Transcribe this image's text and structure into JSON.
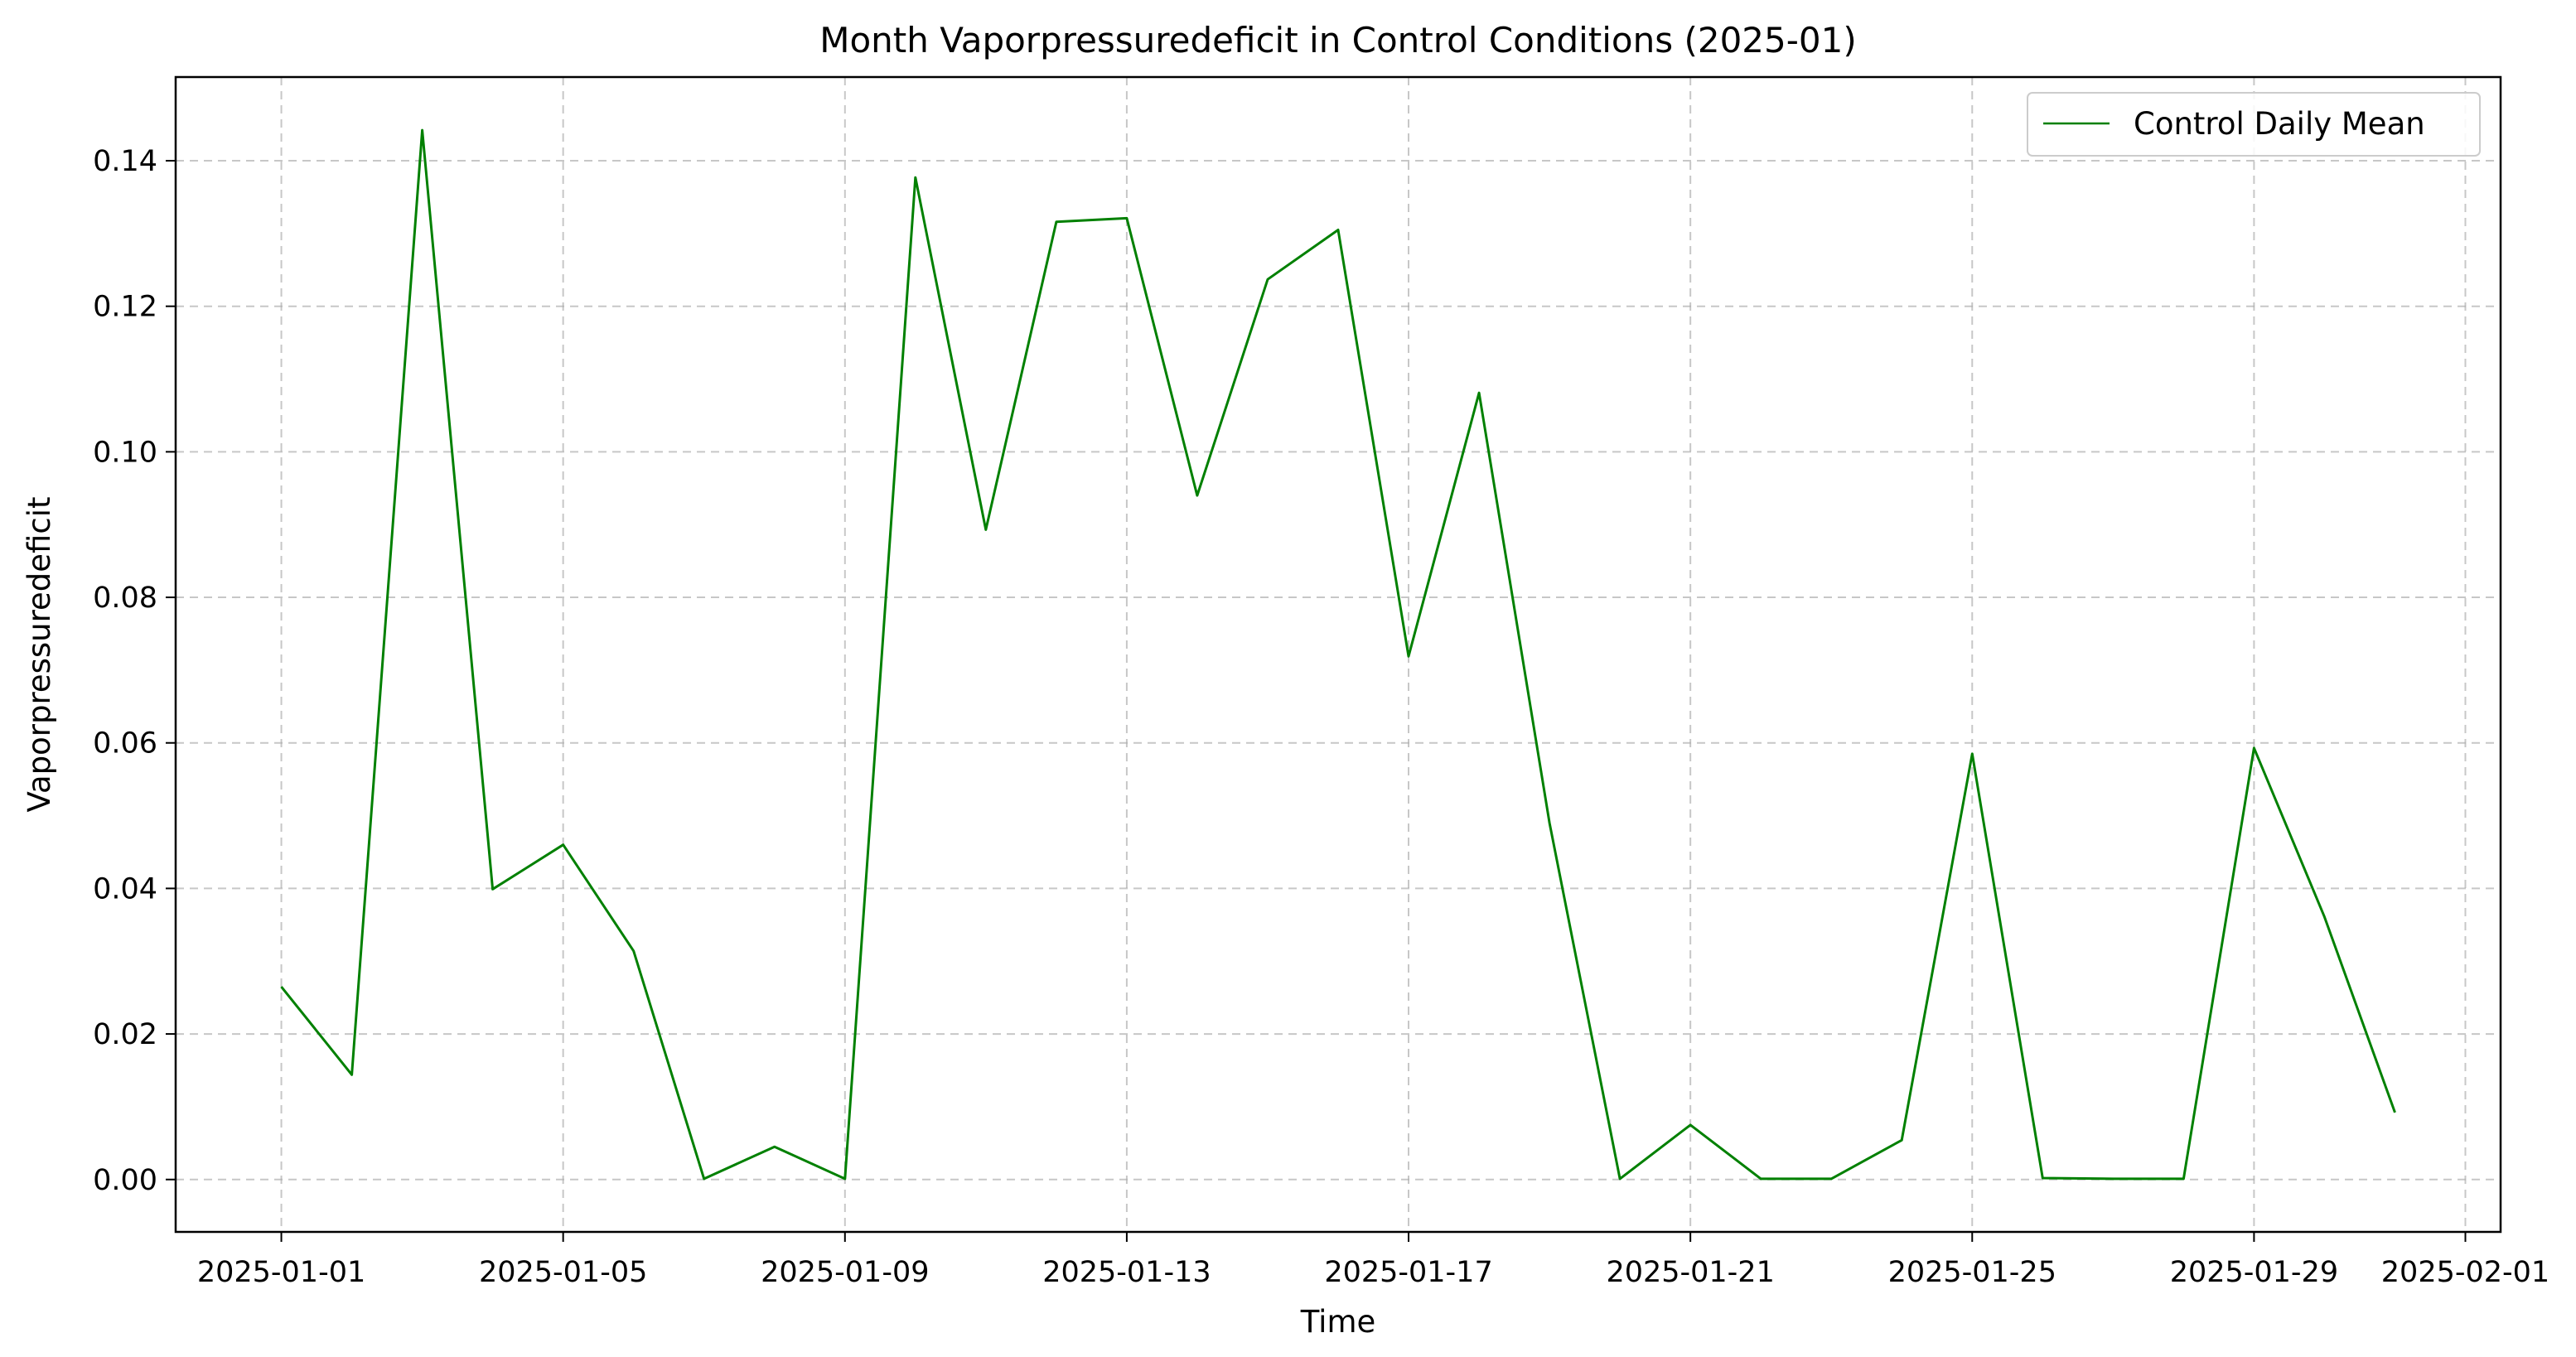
{
  "chart_data": {
    "type": "line",
    "title": "Month Vaporpressuredeficit in Control Conditions (2025-01)",
    "xlabel": "Time",
    "ylabel": "Vaporpressuredeficit",
    "xlim": [
      "2024-12-30T12:00",
      "2025-02-01T12:00"
    ],
    "ylim": [
      -0.0072,
      0.1515
    ],
    "grid": true,
    "legend_position": "top-right",
    "xticks": [
      "2025-01-01",
      "2025-01-05",
      "2025-01-09",
      "2025-01-13",
      "2025-01-17",
      "2025-01-21",
      "2025-01-25",
      "2025-01-29",
      "2025-02-01"
    ],
    "yticks": [
      0.0,
      0.02,
      0.04,
      0.06,
      0.08,
      0.1,
      0.12,
      0.14
    ],
    "ytick_labels": [
      "0.00",
      "0.02",
      "0.04",
      "0.06",
      "0.08",
      "0.10",
      "0.12",
      "0.14"
    ],
    "series": [
      {
        "name": "Control Daily Mean",
        "color": "#008000",
        "x": [
          "2025-01-01",
          "2025-01-02",
          "2025-01-03",
          "2025-01-04",
          "2025-01-05",
          "2025-01-06",
          "2025-01-07",
          "2025-01-08",
          "2025-01-09",
          "2025-01-10",
          "2025-01-11",
          "2025-01-12",
          "2025-01-13",
          "2025-01-14",
          "2025-01-15",
          "2025-01-16",
          "2025-01-17",
          "2025-01-18",
          "2025-01-19",
          "2025-01-20",
          "2025-01-21",
          "2025-01-22",
          "2025-01-23",
          "2025-01-24",
          "2025-01-25",
          "2025-01-26",
          "2025-01-27",
          "2025-01-28",
          "2025-01-29",
          "2025-01-30",
          "2025-01-31"
        ],
        "y": [
          0.0265,
          0.0144,
          0.1442,
          0.0399,
          0.046,
          0.0314,
          0.0001,
          0.0045,
          0.0001,
          0.1377,
          0.0893,
          0.1316,
          0.1321,
          0.094,
          0.1237,
          0.1305,
          0.0719,
          0.1081,
          0.049,
          0.0001,
          0.0075,
          0.0001,
          0.0001,
          0.0054,
          0.0585,
          0.0002,
          0.0001,
          0.0001,
          0.0593,
          0.0361,
          0.0092
        ]
      }
    ]
  }
}
